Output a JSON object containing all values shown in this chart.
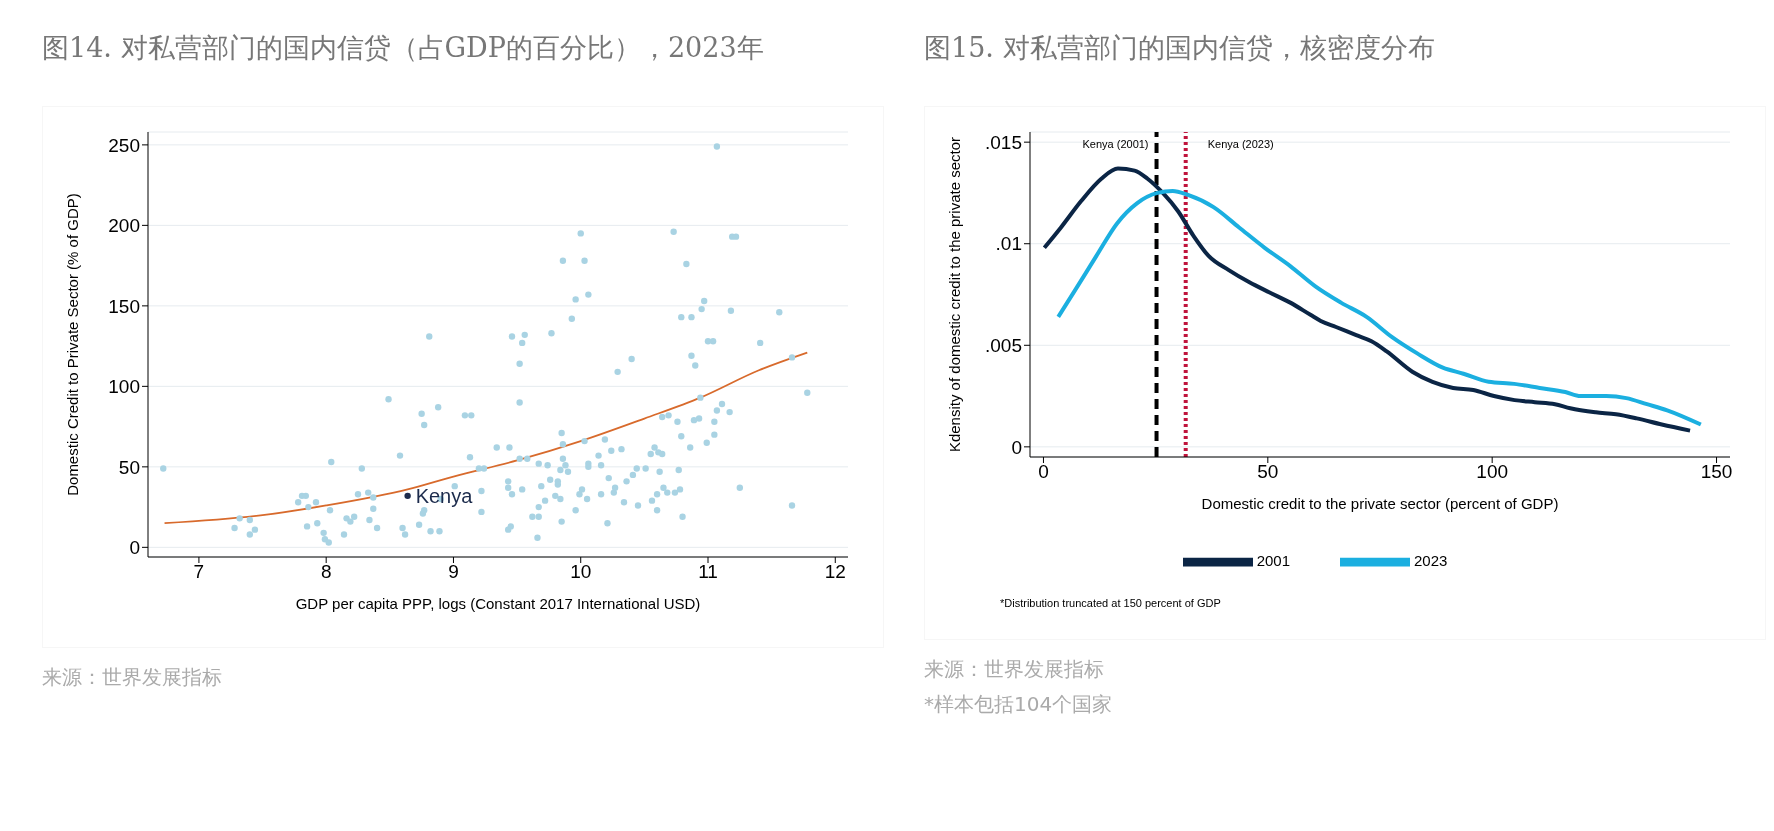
{
  "chart_data": [
    {
      "type": "scatter",
      "title": "图14. 对私营部门的国内信贷（占GDP的百分比），2023年",
      "xlabel": "GDP per capita PPP, logs (Constant 2017 International USD)",
      "ylabel": "Domestic Credit to Private Sector (% of GDP)",
      "xlim": [
        6.6,
        12.1
      ],
      "ylim": [
        -6,
        258
      ],
      "xticks": [
        7,
        8,
        9,
        10,
        11,
        12
      ],
      "yticks": [
        0,
        50,
        100,
        150,
        200,
        250
      ],
      "grid": "y",
      "annotations": [
        "来源：世界发展指标"
      ],
      "series": [
        {
          "marker": "circle",
          "color": "#a9d3e3",
          "x": [
            6.72,
            8.81,
            8.49,
            8.75,
            8.88,
            8.77,
            9.09,
            9.14,
            8.58,
            8.04,
            8.28,
            9.13,
            9.34,
            9.2,
            9.24,
            9.01,
            9.22,
            9.22,
            7.81,
            7.84,
            7.78,
            7.92,
            7.86,
            8.03,
            8.25,
            8.33,
            8.37,
            8.37,
            7.32,
            7.4,
            7.28,
            7.44,
            7.4,
            7.85,
            7.93,
            7.98,
            7.99,
            8.02,
            8.14,
            8.16,
            8.19,
            8.22,
            8.34,
            8.4,
            8.6,
            8.62,
            8.73,
            8.76,
            8.77,
            8.82,
            8.89,
            8.9,
            10.0,
            10.73,
            9.86,
            10.03,
            10.83,
            9.96,
            10.06,
            9.93,
            10.95,
            10.79,
            10.87,
            9.46,
            9.56,
            9.54,
            9.77,
            9.52,
            10.4,
            10.29,
            10.87,
            10.9,
            9.52,
            9.44,
            9.52,
            9.58,
            9.85,
            9.86,
            9.86,
            10.03,
            10.19,
            9.67,
            9.74,
            9.84,
            9.88,
            9.9,
            10.06,
            10.06,
            10.14,
            10.16,
            10.24,
            10.32,
            10.22,
            9.76,
            9.82,
            9.82,
            9.69,
            9.43,
            9.43,
            9.46,
            9.54,
            9.8,
            9.84,
            9.72,
            9.67,
            9.62,
            9.67,
            9.43,
            9.45,
            9.66,
            9.85,
            9.96,
            9.99,
            10.01,
            10.05,
            10.16,
            10.21,
            10.26,
            10.27,
            10.34,
            10.36,
            10.41,
            10.44,
            10.51,
            10.45,
            10.55,
            10.58,
            10.61,
            10.64,
            10.64,
            10.69,
            10.62,
            10.56,
            10.6,
            10.6,
            10.65,
            10.68,
            10.74,
            10.78,
            10.77,
            10.8,
            10.76,
            10.79,
            10.86,
            10.89,
            10.93,
            10.94,
            11.07,
            11.19,
            11.22,
            10.97,
            11.18,
            11.56,
            11.0,
            11.04,
            11.41,
            11.66,
            11.78,
            11.11,
            11.07,
            11.17,
            11.05,
            11.05,
            10.99,
            11.25,
            11.66
          ],
          "values": [
            49,
            131,
            92,
            83,
            87,
            76,
            82,
            82,
            57,
            53,
            49,
            56,
            62,
            49,
            49,
            38,
            35,
            22,
            32,
            32,
            28,
            28,
            25,
            23,
            33,
            34,
            31,
            24,
            18,
            17,
            12,
            11,
            8,
            13,
            15,
            9,
            5,
            3,
            8,
            18,
            16,
            19,
            17,
            12,
            12,
            8,
            14,
            21,
            23,
            10,
            10,
            30,
            195,
            196,
            178,
            178,
            176,
            154,
            157,
            142,
            148,
            143,
            143,
            131,
            132,
            127,
            133,
            114,
            117,
            109,
            119,
            113,
            90,
            62,
            55,
            55,
            71,
            64,
            55,
            66,
            67,
            52,
            51,
            48,
            51,
            47,
            52,
            50,
            57,
            51,
            60,
            61,
            43,
            42,
            41,
            39,
            38,
            41,
            37,
            33,
            36,
            32,
            30,
            29,
            25,
            19,
            19,
            11,
            13,
            6,
            16,
            23,
            33,
            36,
            30,
            33,
            15,
            34,
            37,
            28,
            41,
            45,
            49,
            49,
            26,
            58,
            62,
            59,
            58,
            81,
            82,
            47,
            29,
            33,
            23,
            37,
            34,
            34,
            36,
            48,
            19,
            78,
            69,
            62,
            79,
            80,
            93,
            249,
            193,
            193,
            153,
            147,
            146,
            128,
            128,
            127,
            118,
            96,
            89,
            85,
            84,
            78,
            70,
            65,
            37,
            26
          ]
        },
        {
          "marker": "circle",
          "name": "Kenya",
          "color": "#1c2b4c",
          "x": [
            8.64
          ],
          "values": [
            32
          ]
        },
        {
          "type": "line",
          "color": "#d86a2c",
          "x": [
            6.73,
            7.5,
            8,
            8.64,
            9,
            9.5,
            10,
            10.5,
            10.94,
            11.4,
            11.78
          ],
          "values": [
            15,
            20,
            26,
            36,
            44,
            54,
            66,
            80,
            93,
            110,
            121
          ]
        }
      ]
    },
    {
      "type": "line",
      "title": "图15. 对私营部门的国内信贷，核密度分布",
      "xlabel": "Domestic credit to the private sector (percent of GDP)",
      "ylabel": "Kdensity of domestic credit to the private sector",
      "xlim": [
        -3,
        153
      ],
      "ylim": [
        -0.0005,
        0.0155
      ],
      "xticks": [
        0,
        50,
        100,
        150
      ],
      "yticks": [
        0,
        {
          "value": 0.005,
          "label": ".005"
        },
        {
          "value": 0.01,
          "label": ".01"
        },
        {
          "value": 0.015,
          "label": ".015"
        }
      ],
      "grid": "y",
      "legend": "bottom",
      "annotations": [
        "*Distribution truncated at 150 percent of GDP",
        "来源：世界发展指标",
        "*样本包括104个国家"
      ],
      "ref_lines": [
        {
          "axis": "x",
          "value": 25.2,
          "label": "Kenya (2001)",
          "color": "#000000",
          "line_style": "dashed"
        },
        {
          "axis": "x",
          "value": 31.7,
          "label": "Kenya (2023)",
          "color": "#c0143c",
          "line_style": "dotted"
        }
      ],
      "series": [
        {
          "name": "2001",
          "color": "#0b2545",
          "x": [
            0.2,
            3.9,
            8.4,
            12.9,
            16.6,
            20.3,
            23.2,
            26.6,
            30,
            33.4,
            36.8,
            41.3,
            45.9,
            50.4,
            55,
            59.5,
            61.8,
            65.2,
            69.7,
            73.1,
            76.5,
            82.2,
            86.7,
            91.3,
            95.8,
            100.4,
            105,
            109.5,
            114,
            117.4,
            123.1,
            127.6,
            132.2,
            137.8,
            144.1
          ],
          "values": [
            0.0098,
            0.0108,
            0.0121,
            0.0132,
            0.0137,
            0.0136,
            0.0132,
            0.0125,
            0.0116,
            0.0104,
            0.0094,
            0.0087,
            0.0081,
            0.0076,
            0.0071,
            0.0065,
            0.0062,
            0.0059,
            0.0055,
            0.0052,
            0.0047,
            0.0037,
            0.0032,
            0.0029,
            0.0028,
            0.0025,
            0.0023,
            0.0022,
            0.0021,
            0.0019,
            0.0017,
            0.0016,
            0.0014,
            0.0011,
            0.0008
          ]
        },
        {
          "name": "2023",
          "color": "#1bafe0",
          "x": [
            3.3,
            7.3,
            11.8,
            16.4,
            20.9,
            25.4,
            28.8,
            32.2,
            37.9,
            43.6,
            49.3,
            55,
            60.6,
            66.3,
            72,
            77.7,
            83.3,
            89,
            93.6,
            99.2,
            104.9,
            110.6,
            116.3,
            119.7,
            125.4,
            129.9,
            134.5,
            139,
            146.5
          ],
          "values": [
            0.0064,
            0.0078,
            0.0094,
            0.011,
            0.012,
            0.0125,
            0.0126,
            0.0124,
            0.0118,
            0.0108,
            0.0098,
            0.0089,
            0.0079,
            0.0071,
            0.0064,
            0.0054,
            0.0046,
            0.0039,
            0.0036,
            0.0032,
            0.0031,
            0.0029,
            0.0027,
            0.0025,
            0.0025,
            0.0024,
            0.0021,
            0.0018,
            0.0011
          ]
        }
      ]
    }
  ]
}
